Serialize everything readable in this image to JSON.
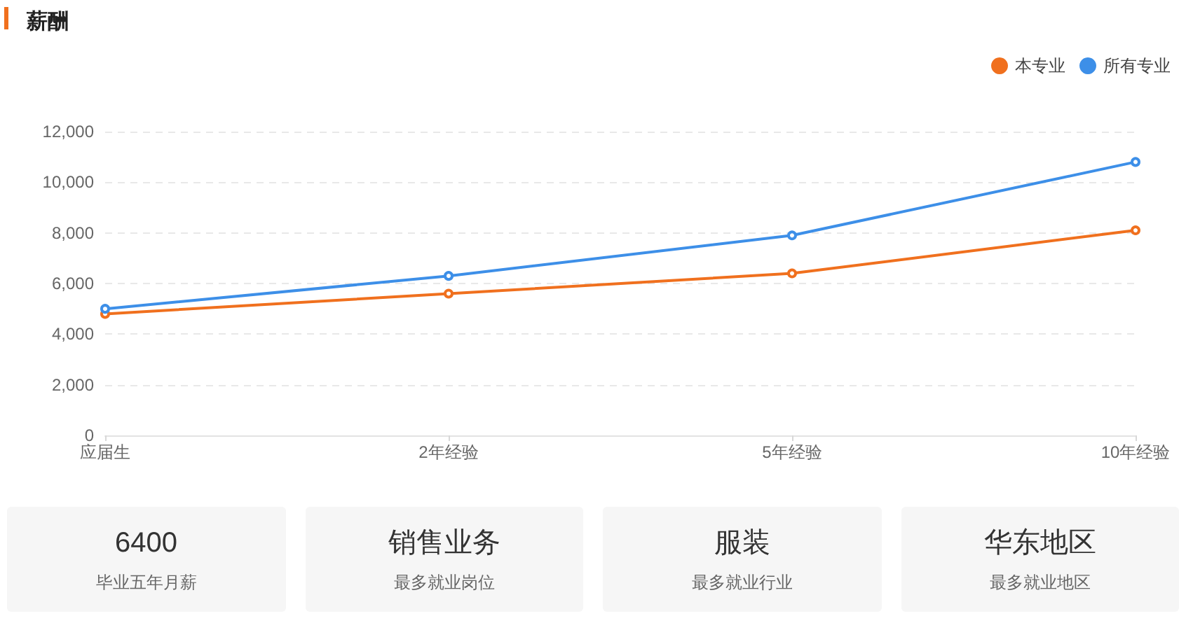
{
  "chart_data": [
    {
      "type": "line",
      "title": "薪酬",
      "categories": [
        "应届生",
        "2年经验",
        "5年经验",
        "10年经验"
      ],
      "series": [
        {
          "name": "本专业",
          "color": "#f0701e",
          "values": [
            4800,
            5600,
            6400,
            8100
          ]
        },
        {
          "name": "所有专业",
          "color": "#3d8fe8",
          "values": [
            5000,
            6300,
            7900,
            10800
          ]
        }
      ],
      "ylim": [
        0,
        12000
      ],
      "yticks": [
        0,
        {
          "value": 2000,
          "label": "2,000"
        },
        {
          "value": 4000,
          "label": "4,000"
        },
        {
          "value": 6000,
          "label": "6,000"
        },
        {
          "value": 8000,
          "label": "8,000"
        },
        {
          "value": 10000,
          "label": "10,000"
        },
        {
          "value": 12000,
          "label": "12,000"
        }
      ],
      "grid": "y",
      "legend": "top right",
      "marker": "circle"
    },
    {
      "type": "other",
      "annotations": [
        "6400",
        "毕业五年月薪",
        "销售业务",
        "最多就业岗位",
        "服装",
        "最多就业行业",
        "华东地区",
        "最多就业地区"
      ]
    }
  ]
}
